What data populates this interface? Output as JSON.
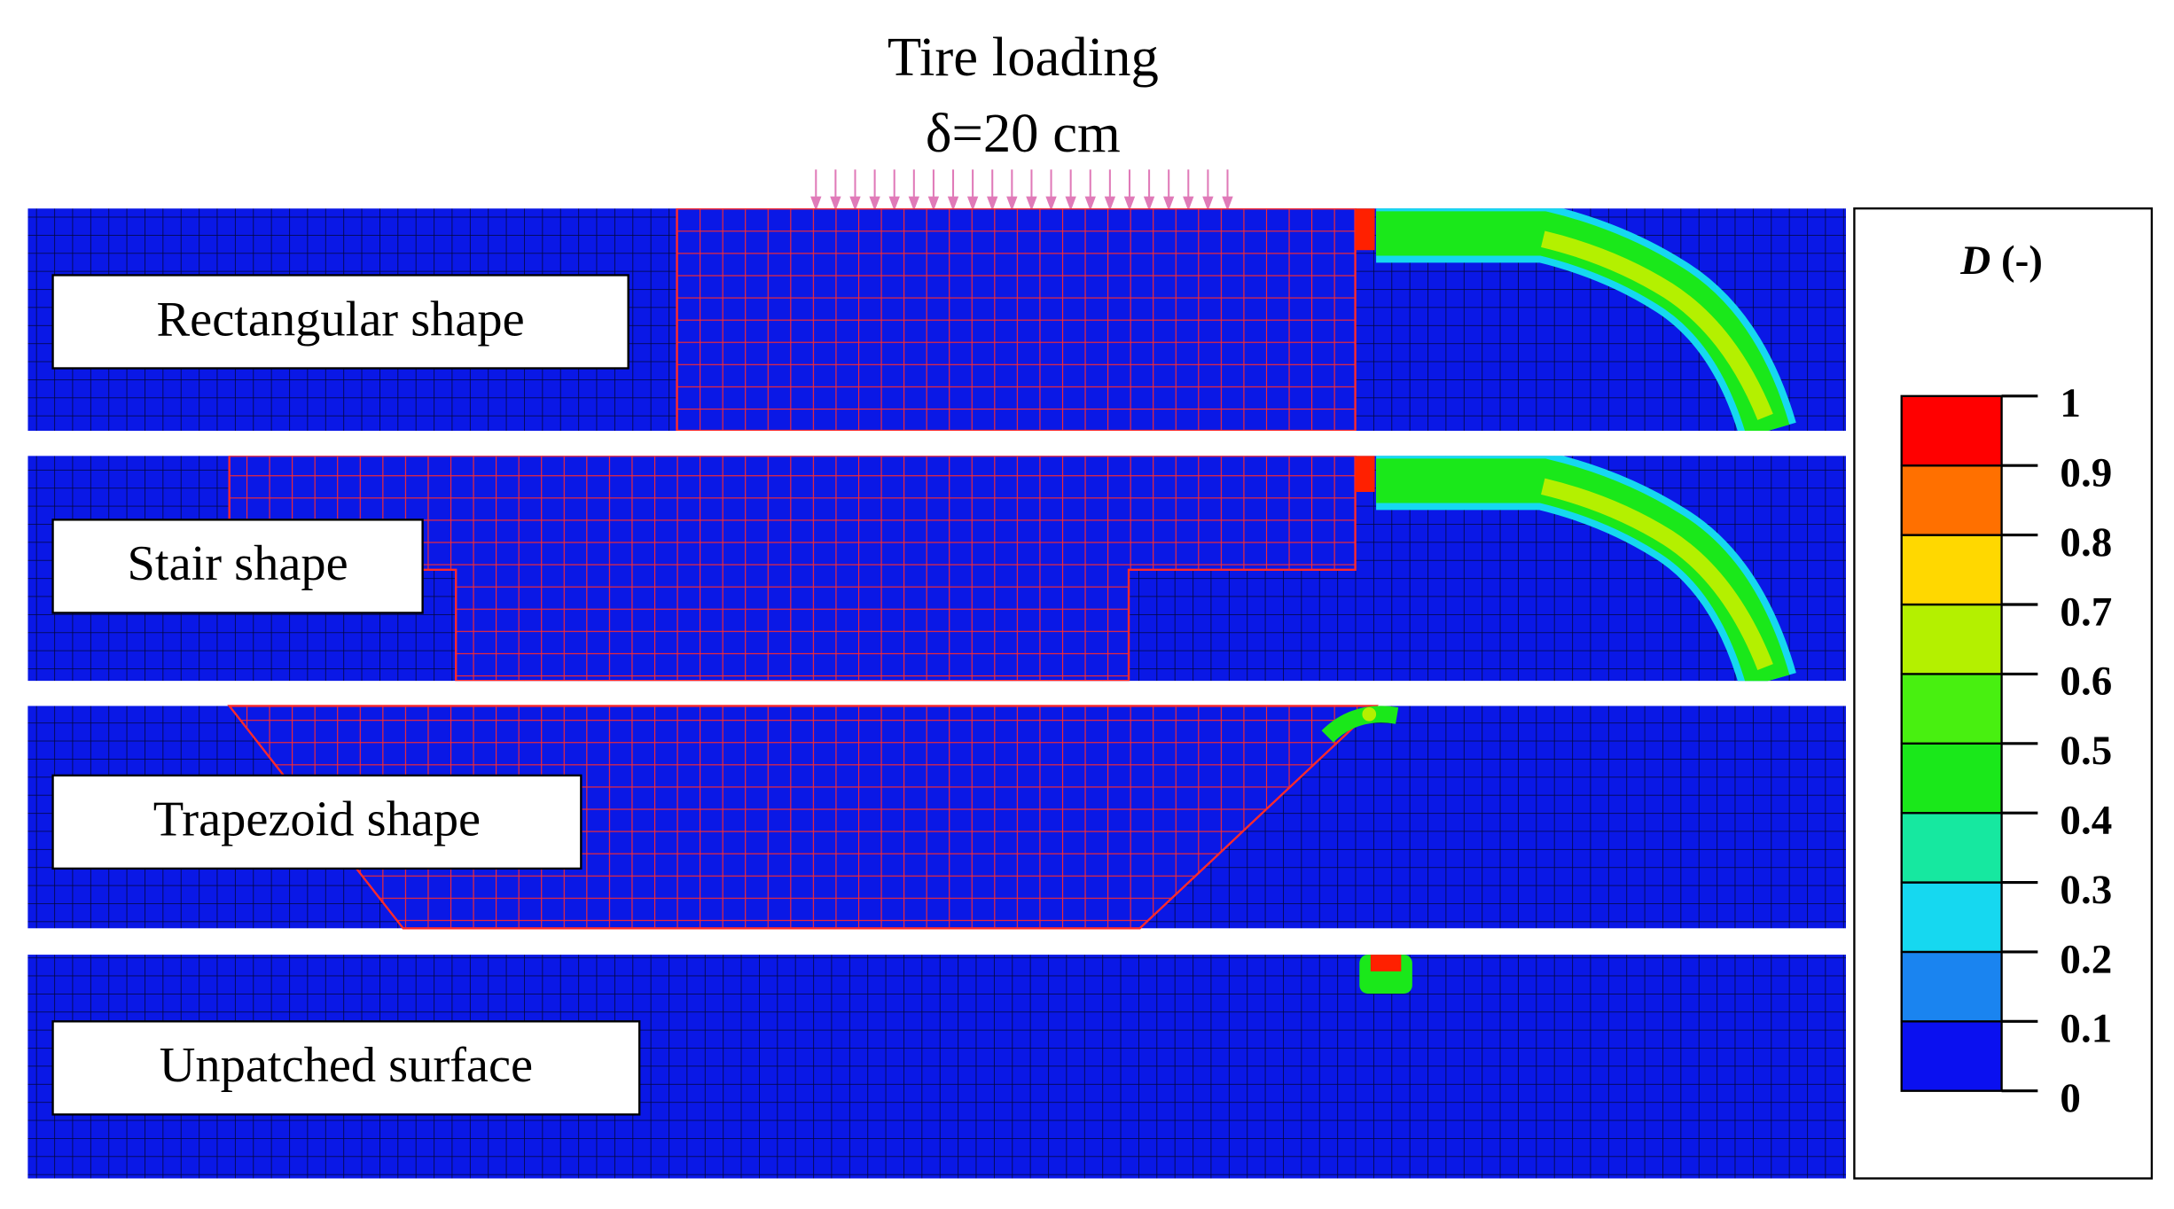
{
  "figure": {
    "title": "Tire loading",
    "subtitle": "δ=20 cm",
    "panels": [
      {
        "label": "Rectangular shape"
      },
      {
        "label": "Stair shape"
      },
      {
        "label": "Trapezoid shape"
      },
      {
        "label": "Unpatched surface"
      }
    ],
    "colorbar": {
      "symbol": "D",
      "unit": "(-)",
      "ticks": [
        0,
        0.1,
        0.2,
        0.3,
        0.4,
        0.5,
        0.6,
        0.7,
        0.8,
        0.9,
        1
      ],
      "colors": [
        "#0a10f0",
        "#1a84f0",
        "#16d8f0",
        "#16e8a0",
        "#1ae81a",
        "#48f010",
        "#b4f000",
        "#ffd800",
        "#ff7000",
        "#ff0000"
      ]
    }
  }
}
